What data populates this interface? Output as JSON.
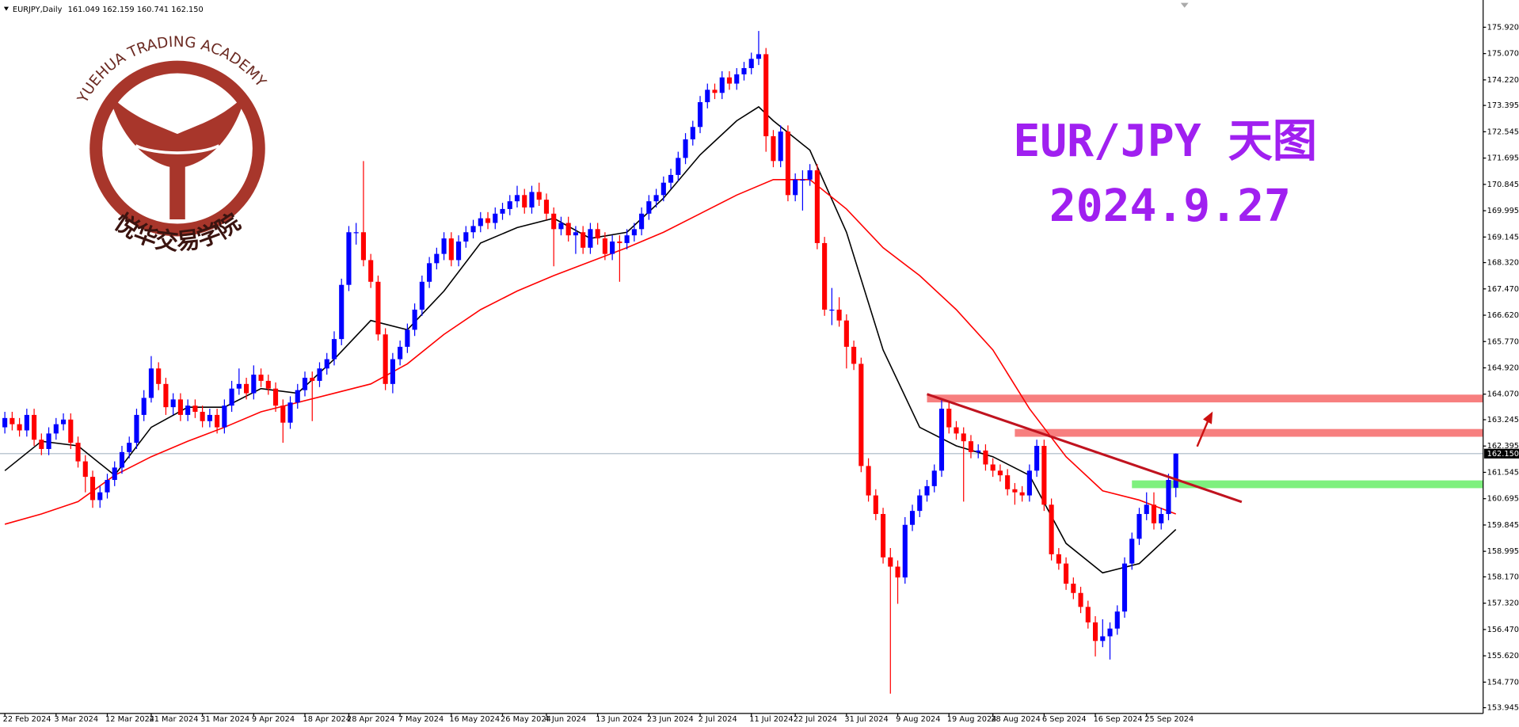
{
  "header": {
    "symbol": "EURJPY,Daily",
    "ohlc": "161.049 162.159 160.741 162.150"
  },
  "logo": {
    "name_en": "YUEHUA TRADING ACADEMY",
    "name_cn": "悦华交易学院"
  },
  "chart_data": {
    "type": "candlestick",
    "title": "EUR/JPY 天图",
    "subtitle": "2024.9.27",
    "up_color": "#0000ff",
    "down_color": "#ff0000",
    "ylim": [
      153.76,
      176.8
    ],
    "yticks": [
      {
        "value": 175.92,
        "label": "175.920"
      },
      {
        "value": 175.07,
        "label": "175.070"
      },
      {
        "value": 174.22,
        "label": "174.220"
      },
      173.395,
      172.545,
      171.695,
      170.845,
      169.995,
      169.145,
      {
        "value": 168.32,
        "label": "168.320"
      },
      {
        "value": 167.47,
        "label": "167.470"
      },
      {
        "value": 166.62,
        "label": "166.620"
      },
      {
        "value": 165.77,
        "label": "165.770"
      },
      {
        "value": 164.92,
        "label": "164.920"
      },
      {
        "value": 164.07,
        "label": "164.070"
      },
      163.245,
      162.395,
      161.545,
      160.695,
      159.845,
      158.995,
      {
        "value": 158.17,
        "label": "158.170"
      },
      {
        "value": 157.32,
        "label": "157.320"
      },
      {
        "value": 156.47,
        "label": "156.470"
      },
      {
        "value": 155.62,
        "label": "155.620"
      },
      {
        "value": 154.77,
        "label": "154.770"
      },
      153.945
    ],
    "last_price": {
      "value": 162.15,
      "label": "162.150"
    },
    "categories": [
      "22 Feb 2024",
      null,
      null,
      null,
      null,
      null,
      null,
      "3 Mar 2024",
      null,
      null,
      null,
      null,
      null,
      null,
      "12 Mar 2024",
      null,
      null,
      null,
      null,
      null,
      "21 Mar 2024",
      null,
      null,
      null,
      null,
      null,
      null,
      "31 Mar 2024",
      null,
      null,
      null,
      null,
      null,
      null,
      "9 Apr 2024",
      null,
      null,
      null,
      null,
      null,
      null,
      "18 Apr 2024",
      null,
      null,
      null,
      null,
      null,
      "28 Apr 2024",
      null,
      null,
      null,
      null,
      null,
      null,
      "7 May 2024",
      null,
      null,
      null,
      null,
      null,
      null,
      "16 May 2024",
      null,
      null,
      null,
      null,
      null,
      null,
      "26 May 2024",
      null,
      null,
      null,
      null,
      null,
      "4 Jun 2024",
      null,
      null,
      null,
      null,
      null,
      null,
      "13 Jun 2024",
      null,
      null,
      null,
      null,
      null,
      null,
      "23 Jun 2024",
      null,
      null,
      null,
      null,
      null,
      null,
      "2 Jul 2024",
      null,
      null,
      null,
      null,
      null,
      null,
      "11 Jul 2024",
      null,
      null,
      null,
      null,
      null,
      "22 Jul 2024",
      null,
      null,
      null,
      null,
      null,
      null,
      "31 Jul 2024",
      null,
      null,
      null,
      null,
      null,
      null,
      "9 Aug 2024",
      null,
      null,
      null,
      null,
      null,
      null,
      "19 Aug 2024",
      null,
      null,
      null,
      null,
      null,
      "28 Aug 2024",
      null,
      null,
      null,
      null,
      null,
      null,
      "6 Sep 2024",
      null,
      null,
      null,
      null,
      null,
      null,
      "16 Sep 2024",
      null,
      null,
      null,
      null,
      null,
      null,
      "25 Sep 2024",
      null,
      null,
      null,
      null
    ],
    "candles": [
      [
        163.0,
        163.5,
        162.8,
        163.3
      ],
      [
        163.3,
        163.5,
        162.9,
        163.1
      ],
      [
        163.1,
        163.3,
        162.7,
        162.9
      ],
      [
        162.9,
        163.6,
        162.7,
        163.4
      ],
      [
        163.4,
        163.6,
        162.4,
        162.6
      ],
      [
        162.6,
        162.8,
        162.1,
        162.3
      ],
      [
        162.3,
        163.0,
        162.1,
        162.8
      ],
      [
        162.8,
        163.3,
        162.6,
        163.1
      ],
      [
        163.1,
        163.45,
        162.9,
        163.25
      ],
      [
        163.25,
        163.45,
        162.3,
        162.5
      ],
      [
        162.5,
        162.7,
        161.7,
        161.9
      ],
      [
        161.9,
        162.1,
        160.9,
        161.4
      ],
      [
        161.4,
        161.6,
        160.4,
        160.65
      ],
      [
        160.65,
        161.1,
        160.4,
        160.9
      ],
      [
        160.9,
        161.5,
        160.7,
        161.3
      ],
      [
        161.3,
        161.9,
        161.1,
        161.7
      ],
      [
        161.7,
        162.4,
        161.5,
        162.2
      ],
      [
        162.2,
        162.7,
        162.0,
        162.5
      ],
      [
        162.5,
        163.6,
        162.3,
        163.4
      ],
      [
        163.4,
        164.2,
        163.2,
        163.95
      ],
      [
        163.95,
        165.3,
        163.8,
        164.9
      ],
      [
        164.9,
        165.1,
        164.2,
        164.4
      ],
      [
        164.4,
        164.6,
        163.4,
        163.65
      ],
      [
        163.65,
        164.1,
        163.4,
        163.9
      ],
      [
        163.9,
        164.1,
        163.2,
        163.4
      ],
      [
        163.4,
        163.9,
        163.2,
        163.7
      ],
      [
        163.7,
        163.9,
        163.3,
        163.5
      ],
      [
        163.5,
        163.7,
        163.0,
        163.2
      ],
      [
        163.2,
        163.6,
        163.0,
        163.4
      ],
      [
        163.4,
        163.6,
        162.8,
        163.0
      ],
      [
        163.0,
        163.9,
        162.8,
        163.7
      ],
      [
        163.7,
        164.5,
        163.5,
        164.25
      ],
      [
        164.25,
        164.9,
        164.05,
        164.4
      ],
      [
        164.4,
        164.6,
        163.9,
        164.1
      ],
      [
        164.1,
        165.0,
        163.9,
        164.7
      ],
      [
        164.7,
        164.9,
        164.3,
        164.5
      ],
      [
        164.5,
        164.7,
        164.05,
        164.25
      ],
      [
        164.25,
        164.45,
        163.5,
        163.7
      ],
      [
        163.7,
        163.9,
        162.5,
        163.15
      ],
      [
        163.15,
        164.0,
        162.95,
        163.8
      ],
      [
        163.8,
        164.4,
        163.6,
        164.2
      ],
      [
        164.2,
        164.8,
        164.0,
        164.6
      ],
      [
        164.6,
        164.8,
        163.2,
        164.5
      ],
      [
        164.5,
        165.1,
        164.3,
        164.9
      ],
      [
        164.9,
        165.4,
        164.7,
        165.2
      ],
      [
        165.2,
        166.1,
        165.0,
        165.85
      ],
      [
        165.85,
        167.8,
        165.65,
        167.6
      ],
      [
        167.6,
        169.5,
        167.4,
        169.3
      ],
      [
        169.3,
        169.6,
        168.9,
        169.3
      ],
      [
        169.3,
        171.6,
        168.2,
        168.4
      ],
      [
        168.4,
        168.6,
        167.5,
        167.7
      ],
      [
        167.7,
        167.9,
        165.8,
        166.0
      ],
      [
        166.0,
        166.2,
        164.2,
        164.4
      ],
      [
        164.4,
        165.4,
        164.1,
        165.2
      ],
      [
        165.2,
        165.8,
        165.0,
        165.6
      ],
      [
        165.6,
        166.35,
        165.4,
        166.15
      ],
      [
        166.15,
        167.0,
        165.95,
        166.8
      ],
      [
        166.8,
        167.9,
        166.6,
        167.7
      ],
      [
        167.7,
        168.5,
        167.5,
        168.3
      ],
      [
        168.3,
        168.8,
        168.1,
        168.6
      ],
      [
        168.6,
        169.3,
        168.4,
        169.1
      ],
      [
        169.1,
        169.3,
        168.2,
        168.4
      ],
      [
        168.4,
        169.2,
        168.2,
        169.0
      ],
      [
        169.0,
        169.5,
        168.8,
        169.3
      ],
      [
        169.3,
        169.7,
        169.1,
        169.5
      ],
      [
        169.5,
        169.95,
        169.3,
        169.75
      ],
      [
        169.75,
        169.95,
        169.4,
        169.6
      ],
      [
        169.6,
        170.1,
        169.4,
        169.9
      ],
      [
        169.9,
        170.25,
        169.7,
        170.05
      ],
      [
        170.05,
        170.5,
        169.85,
        170.3
      ],
      [
        170.3,
        170.8,
        170.1,
        170.5
      ],
      [
        170.5,
        170.7,
        169.9,
        170.1
      ],
      [
        170.1,
        170.8,
        169.9,
        170.6
      ],
      [
        170.6,
        170.9,
        170.15,
        170.35
      ],
      [
        170.35,
        170.55,
        169.7,
        169.9
      ],
      [
        169.9,
        170.1,
        168.2,
        169.4
      ],
      [
        169.4,
        169.8,
        169.2,
        169.6
      ],
      [
        169.6,
        169.8,
        169.0,
        169.2
      ],
      [
        169.2,
        169.5,
        168.6,
        169.3
      ],
      [
        169.3,
        169.5,
        168.6,
        168.8
      ],
      [
        168.8,
        169.6,
        168.6,
        169.4
      ],
      [
        169.4,
        169.6,
        168.9,
        169.1
      ],
      [
        169.1,
        169.3,
        168.4,
        168.6
      ],
      [
        168.6,
        169.2,
        168.4,
        169.0
      ],
      [
        169.0,
        169.2,
        167.7,
        168.95
      ],
      [
        168.95,
        169.4,
        168.75,
        169.2
      ],
      [
        169.2,
        169.6,
        169.0,
        169.4
      ],
      [
        169.4,
        170.1,
        169.2,
        169.9
      ],
      [
        169.9,
        170.5,
        169.7,
        170.3
      ],
      [
        170.3,
        170.7,
        170.1,
        170.5
      ],
      [
        170.5,
        171.1,
        170.3,
        170.9
      ],
      [
        170.9,
        171.35,
        170.7,
        171.15
      ],
      [
        171.15,
        171.9,
        170.95,
        171.7
      ],
      [
        171.7,
        172.5,
        171.5,
        172.3
      ],
      [
        172.3,
        172.9,
        172.1,
        172.7
      ],
      [
        172.7,
        173.7,
        172.5,
        173.5
      ],
      [
        173.5,
        174.1,
        173.3,
        173.9
      ],
      [
        173.9,
        174.1,
        173.6,
        173.8
      ],
      [
        173.8,
        174.5,
        173.6,
        174.3
      ],
      [
        174.3,
        174.5,
        173.9,
        174.1
      ],
      [
        174.1,
        174.6,
        173.9,
        174.4
      ],
      [
        174.4,
        174.8,
        174.2,
        174.6
      ],
      [
        174.6,
        175.1,
        174.4,
        174.9
      ],
      [
        174.9,
        175.8,
        174.7,
        175.05
      ],
      [
        175.05,
        175.25,
        171.9,
        172.4
      ],
      [
        172.4,
        172.6,
        171.4,
        171.6
      ],
      [
        171.6,
        172.75,
        171.4,
        172.55
      ],
      [
        172.55,
        172.75,
        170.3,
        170.5
      ],
      [
        170.5,
        171.2,
        170.3,
        171.0
      ],
      [
        171.0,
        171.3,
        170.0,
        171.0
      ],
      [
        171.0,
        171.5,
        170.8,
        171.3
      ],
      [
        171.3,
        171.5,
        168.75,
        168.95
      ],
      [
        168.95,
        169.15,
        166.6,
        166.8
      ],
      [
        166.8,
        167.5,
        166.3,
        166.8
      ],
      [
        166.8,
        167.2,
        166.25,
        166.45
      ],
      [
        166.45,
        166.65,
        164.9,
        165.6
      ],
      [
        165.6,
        165.8,
        164.85,
        165.05
      ],
      [
        165.05,
        165.25,
        161.55,
        161.75
      ],
      [
        161.75,
        162.0,
        160.6,
        160.8
      ],
      [
        160.8,
        161.0,
        160.0,
        160.2
      ],
      [
        160.2,
        160.4,
        158.6,
        158.8
      ],
      [
        158.8,
        159.1,
        154.4,
        158.5
      ],
      [
        158.5,
        158.7,
        157.3,
        158.15
      ],
      [
        158.15,
        160.1,
        157.95,
        159.85
      ],
      [
        159.85,
        160.5,
        159.65,
        160.3
      ],
      [
        160.3,
        161.0,
        160.1,
        160.8
      ],
      [
        160.8,
        161.3,
        160.6,
        161.1
      ],
      [
        161.1,
        161.8,
        160.9,
        161.6
      ],
      [
        161.6,
        163.9,
        161.4,
        163.6
      ],
      [
        163.6,
        163.8,
        162.8,
        163.0
      ],
      [
        163.0,
        163.2,
        162.6,
        162.8
      ],
      [
        162.8,
        163.0,
        160.6,
        162.55
      ],
      [
        162.55,
        162.75,
        162.0,
        162.2
      ],
      [
        162.2,
        162.45,
        162.0,
        162.25
      ],
      [
        162.25,
        162.45,
        161.6,
        161.8
      ],
      [
        161.8,
        162.0,
        161.4,
        161.6
      ],
      [
        161.6,
        161.8,
        161.25,
        161.45
      ],
      [
        161.45,
        161.65,
        160.8,
        161.0
      ],
      [
        161.0,
        161.2,
        160.5,
        160.9
      ],
      [
        160.9,
        161.1,
        160.6,
        160.8
      ],
      [
        160.8,
        161.8,
        160.6,
        161.6
      ],
      [
        161.6,
        162.6,
        161.4,
        162.4
      ],
      [
        162.4,
        162.6,
        160.3,
        160.5
      ],
      [
        160.5,
        160.7,
        158.7,
        158.9
      ],
      [
        158.9,
        159.1,
        158.4,
        158.6
      ],
      [
        158.6,
        158.8,
        157.75,
        157.95
      ],
      [
        157.95,
        158.15,
        157.45,
        157.65
      ],
      [
        157.65,
        157.85,
        157.0,
        157.2
      ],
      [
        157.2,
        157.4,
        156.5,
        156.7
      ],
      [
        156.7,
        156.9,
        155.6,
        156.1
      ],
      [
        156.1,
        156.8,
        155.9,
        156.25
      ],
      [
        156.25,
        156.7,
        155.5,
        156.5
      ],
      [
        156.5,
        157.25,
        156.3,
        157.05
      ],
      [
        157.05,
        158.8,
        156.85,
        158.6
      ],
      [
        158.6,
        159.6,
        158.4,
        159.4
      ],
      [
        159.4,
        160.4,
        159.2,
        160.2
      ],
      [
        160.2,
        160.9,
        160.0,
        160.5
      ],
      [
        160.5,
        160.9,
        159.7,
        159.9
      ],
      [
        159.9,
        160.4,
        159.7,
        160.2
      ],
      [
        160.2,
        161.5,
        160.0,
        161.3
      ],
      [
        161.049,
        162.159,
        160.741,
        162.15
      ]
    ],
    "series": [
      {
        "color": "#000000",
        "x": [
          0,
          5,
          10,
          15,
          20,
          25,
          30,
          35,
          40,
          45,
          50,
          55,
          60,
          65,
          70,
          75,
          80,
          85,
          90,
          95,
          100,
          103,
          105,
          110,
          115,
          120,
          125,
          130,
          135,
          140,
          145,
          150,
          155,
          160
        ],
        "values": [
          161.6,
          162.55,
          162.4,
          161.45,
          163.0,
          163.65,
          163.65,
          164.25,
          164.1,
          165.2,
          166.45,
          166.15,
          167.4,
          168.95,
          169.45,
          169.75,
          169.1,
          169.3,
          170.4,
          171.8,
          172.9,
          173.35,
          172.9,
          171.95,
          169.3,
          165.5,
          163.0,
          162.4,
          162.05,
          161.45,
          159.25,
          158.3,
          158.6,
          159.7
        ]
      },
      {
        "color": "#ff0000",
        "x": [
          0,
          5,
          10,
          15,
          20,
          25,
          30,
          35,
          40,
          45,
          50,
          55,
          60,
          65,
          70,
          75,
          80,
          85,
          90,
          95,
          100,
          105,
          110,
          115,
          120,
          125,
          130,
          135,
          140,
          145,
          150,
          155,
          160
        ],
        "values": [
          159.87,
          160.2,
          160.6,
          161.45,
          162.05,
          162.55,
          163.0,
          163.5,
          163.8,
          164.1,
          164.4,
          165.05,
          166.0,
          166.8,
          167.4,
          167.9,
          168.35,
          168.8,
          169.3,
          169.9,
          170.5,
          171.0,
          171.0,
          170.05,
          168.8,
          167.9,
          166.8,
          165.5,
          163.6,
          162.05,
          160.95,
          160.65,
          160.2
        ]
      }
    ],
    "bands": [
      {
        "value": 163.93,
        "x": 126,
        "color": "#f77f7f"
      },
      {
        "value": 162.82,
        "x": 138,
        "color": "#f77f7f"
      },
      {
        "value": 161.16,
        "x": 154,
        "color": "#7ef07e"
      }
    ],
    "trendline": {
      "color": "#c0131f",
      "x": [
        126,
        169
      ],
      "values": [
        164.07,
        160.59
      ]
    }
  }
}
